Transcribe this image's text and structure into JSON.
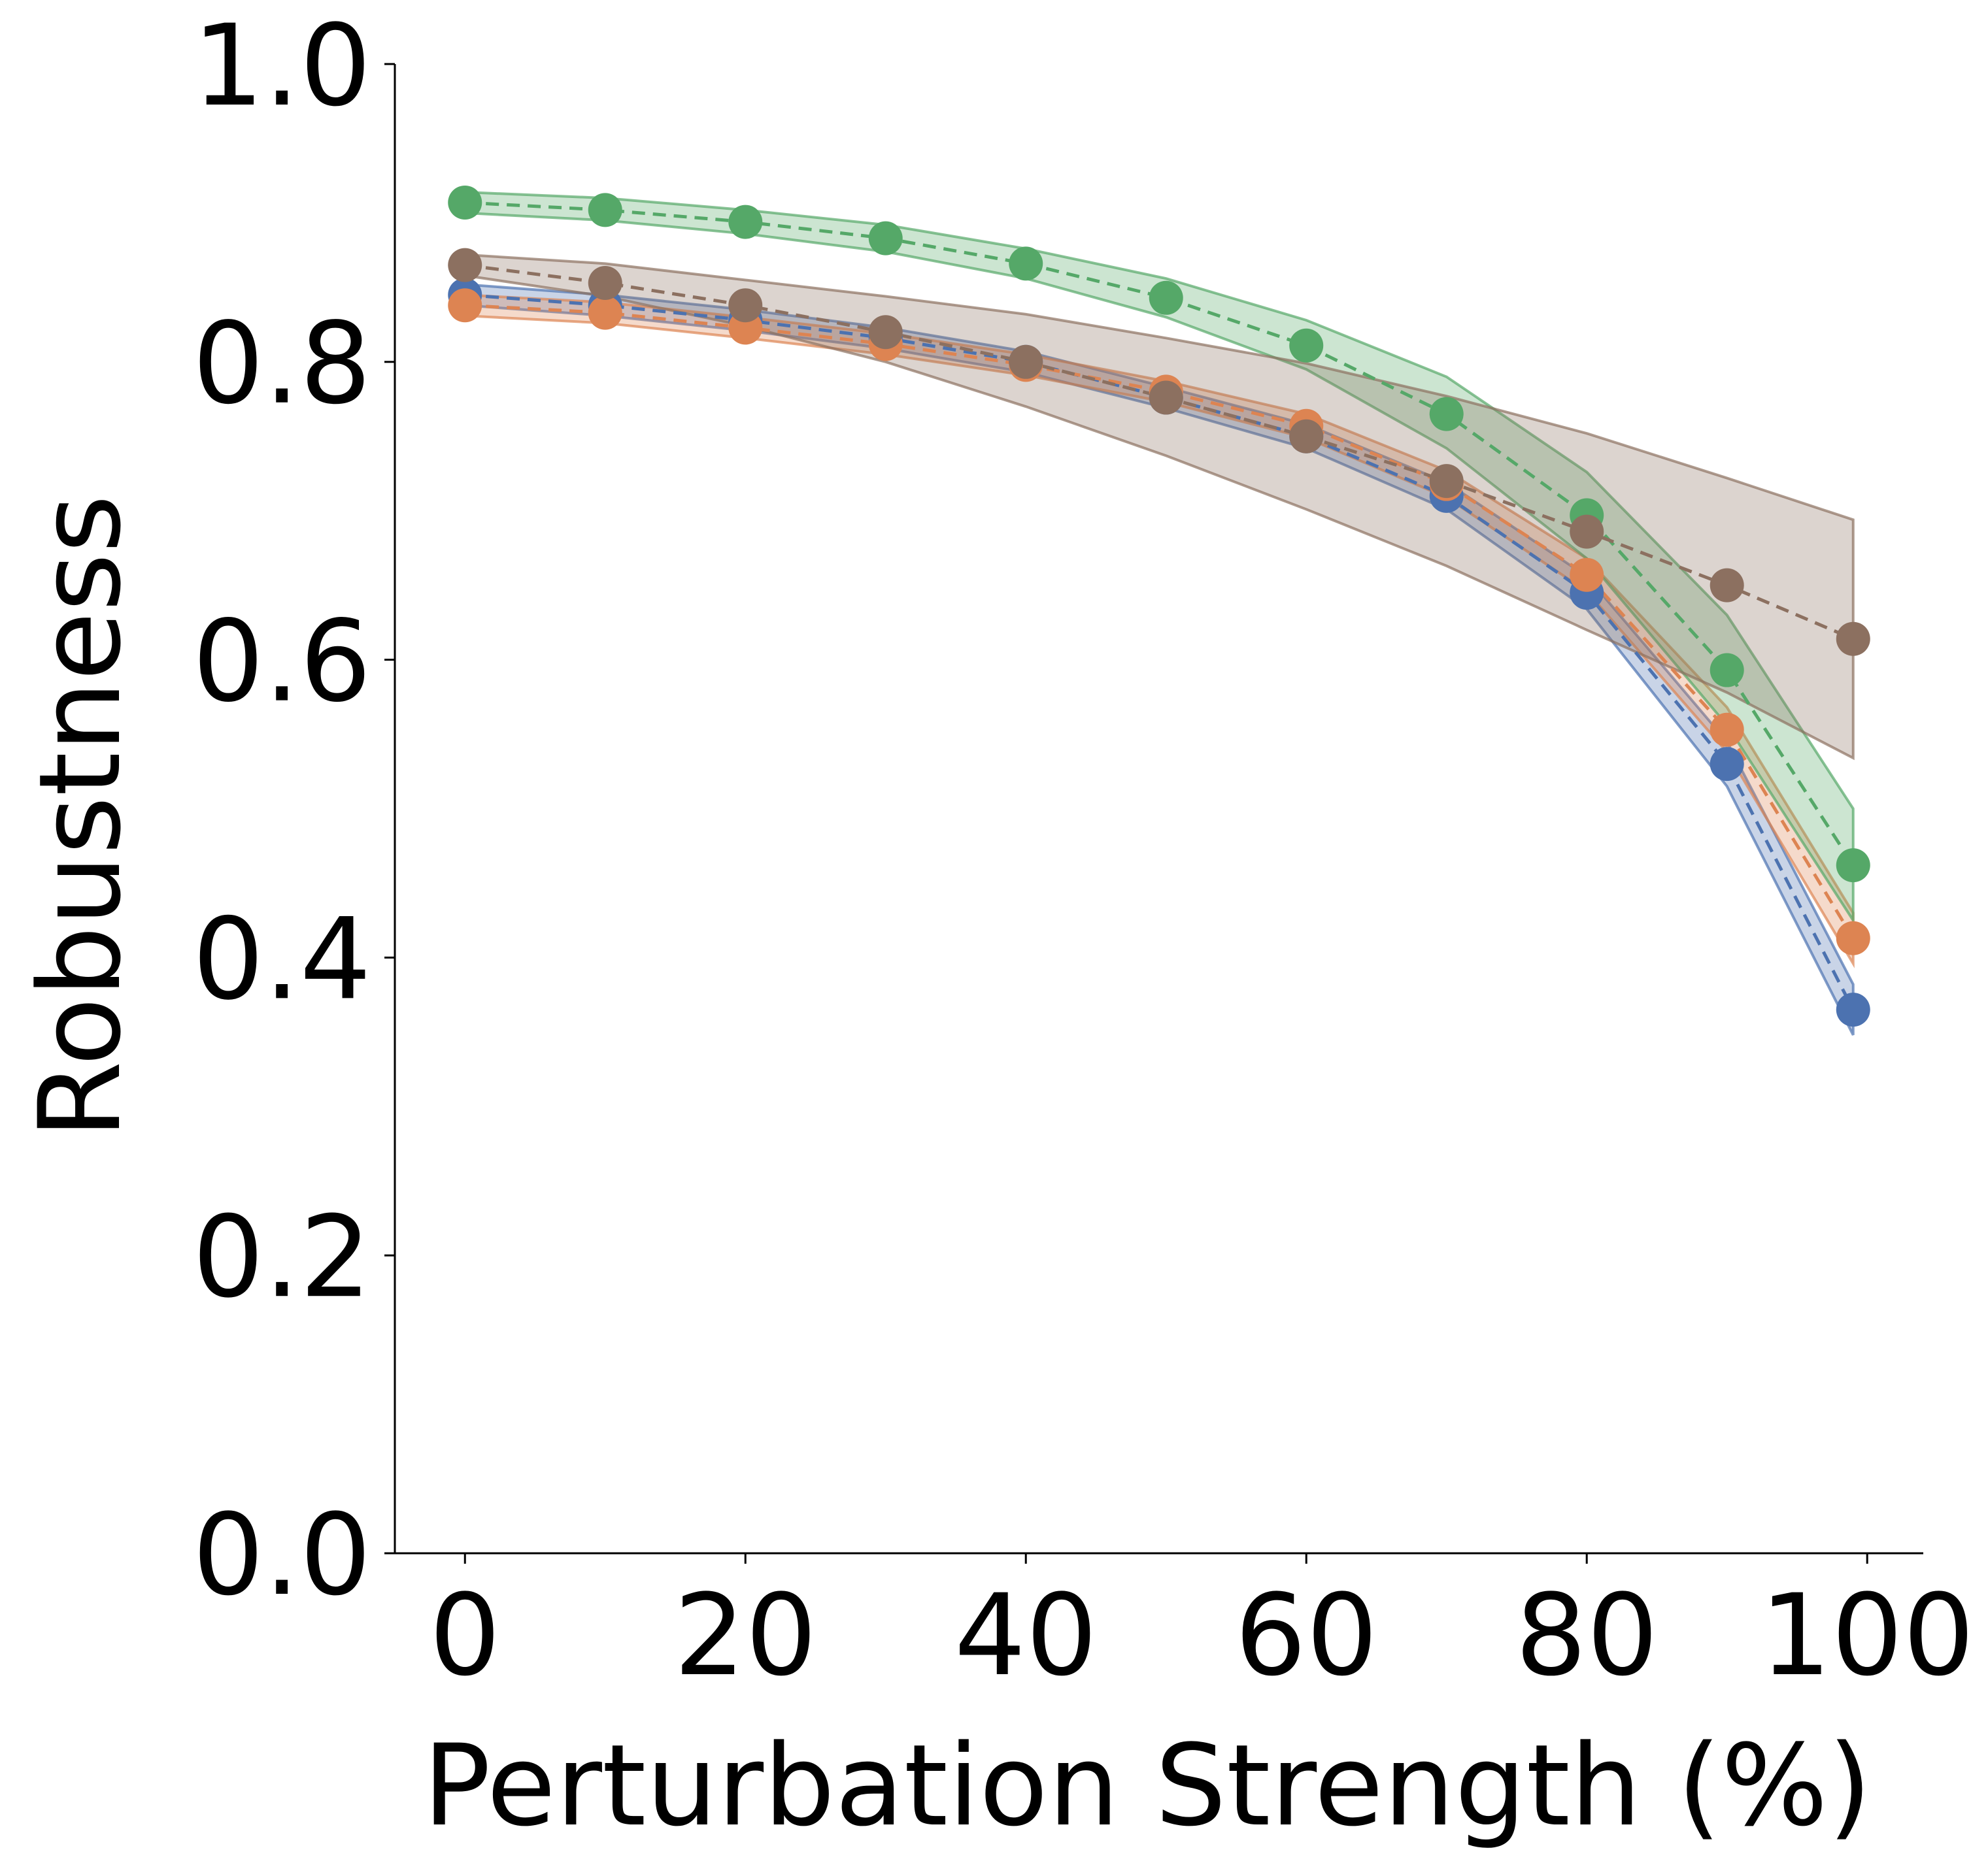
{
  "chart_data": {
    "type": "line",
    "xlabel": "Perturbation Strength (%)",
    "ylabel": "Robustness",
    "xlim": [
      -5,
      104
    ],
    "ylim": [
      0.0,
      1.0
    ],
    "x_ticks": [
      "0",
      "20",
      "40",
      "60",
      "80",
      "100"
    ],
    "y_ticks": [
      "0.0",
      "0.2",
      "0.4",
      "0.6",
      "0.8",
      "1.0"
    ],
    "grid": false,
    "legend": "none",
    "x": [
      0,
      10,
      20,
      30,
      40,
      50,
      60,
      70,
      80,
      90,
      99
    ],
    "series": [
      {
        "color": "#4c72b0",
        "marker": "circle",
        "linestyle": "dashed",
        "values": [
          0.845,
          0.838,
          0.828,
          0.816,
          0.8,
          0.776,
          0.75,
          0.71,
          0.645,
          0.53,
          0.365
        ],
        "band_lower": [
          0.838,
          0.831,
          0.821,
          0.809,
          0.793,
          0.769,
          0.742,
          0.701,
          0.634,
          0.515,
          0.348
        ],
        "band_upper": [
          0.852,
          0.845,
          0.835,
          0.823,
          0.807,
          0.783,
          0.758,
          0.719,
          0.656,
          0.545,
          0.382
        ]
      },
      {
        "color": "#dd8452",
        "marker": "circle",
        "linestyle": "dashed",
        "values": [
          0.838,
          0.833,
          0.823,
          0.812,
          0.798,
          0.78,
          0.757,
          0.718,
          0.657,
          0.553,
          0.413
        ],
        "band_lower": [
          0.831,
          0.826,
          0.816,
          0.805,
          0.791,
          0.773,
          0.749,
          0.709,
          0.646,
          0.538,
          0.396
        ],
        "band_upper": [
          0.845,
          0.84,
          0.83,
          0.819,
          0.805,
          0.787,
          0.765,
          0.727,
          0.668,
          0.568,
          0.43
        ]
      },
      {
        "color": "#55a868",
        "marker": "circle",
        "linestyle": "dashed",
        "values": [
          0.907,
          0.902,
          0.894,
          0.883,
          0.866,
          0.843,
          0.811,
          0.765,
          0.697,
          0.593,
          0.462
        ],
        "band_lower": [
          0.9,
          0.895,
          0.886,
          0.874,
          0.856,
          0.83,
          0.795,
          0.742,
          0.668,
          0.556,
          0.425
        ],
        "band_upper": [
          0.914,
          0.91,
          0.902,
          0.892,
          0.876,
          0.856,
          0.828,
          0.79,
          0.726,
          0.63,
          0.5
        ]
      },
      {
        "color": "#8c7060",
        "marker": "circle",
        "linestyle": "dashed",
        "values": [
          0.865,
          0.853,
          0.838,
          0.82,
          0.8,
          0.776,
          0.75,
          0.72,
          0.686,
          0.65,
          0.614
        ],
        "band_lower": [
          0.858,
          0.844,
          0.824,
          0.8,
          0.77,
          0.737,
          0.701,
          0.663,
          0.62,
          0.578,
          0.534
        ],
        "band_upper": [
          0.872,
          0.866,
          0.855,
          0.844,
          0.832,
          0.816,
          0.799,
          0.777,
          0.752,
          0.722,
          0.694
        ]
      }
    ]
  }
}
